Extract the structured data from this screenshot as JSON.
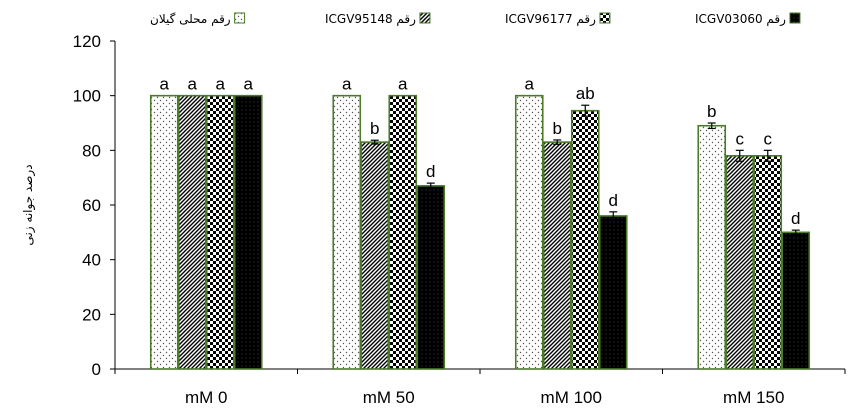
{
  "chart_data": {
    "type": "bar",
    "categories": [
      "mM 0",
      "mM 50",
      "mM 100",
      "mM 150"
    ],
    "series": [
      {
        "name": "رقم محلی گیلان",
        "pattern": "dots",
        "values": [
          100,
          100,
          100,
          89
        ],
        "errors": [
          0,
          0,
          0,
          1
        ],
        "letters": [
          "a",
          "a",
          "a",
          "b"
        ]
      },
      {
        "name": "رقم ICGV95148",
        "pattern": "diag",
        "values": [
          100,
          83,
          83,
          78
        ],
        "errors": [
          0,
          0.7,
          0.8,
          2
        ],
        "letters": [
          "a",
          "b",
          "b",
          "c"
        ]
      },
      {
        "name": "رقم ICGV96177",
        "pattern": "check",
        "values": [
          100,
          100,
          94.5,
          78
        ],
        "errors": [
          0,
          0,
          2,
          2
        ],
        "letters": [
          "a",
          "a",
          "ab",
          "c"
        ]
      },
      {
        "name": "رقم ICGV03060",
        "pattern": "black",
        "values": [
          100,
          67,
          56,
          50
        ],
        "errors": [
          0,
          1,
          1.5,
          0.8
        ],
        "letters": [
          "a",
          "d",
          "d",
          "d"
        ]
      }
    ],
    "ylabel": "درصد جوانه زنی",
    "xlabel": "",
    "ylim": [
      0,
      120
    ],
    "yticks": [
      0,
      20,
      40,
      60,
      80,
      100,
      120
    ],
    "legend_position": "top",
    "bar_border_color": "#4a7a2a"
  }
}
